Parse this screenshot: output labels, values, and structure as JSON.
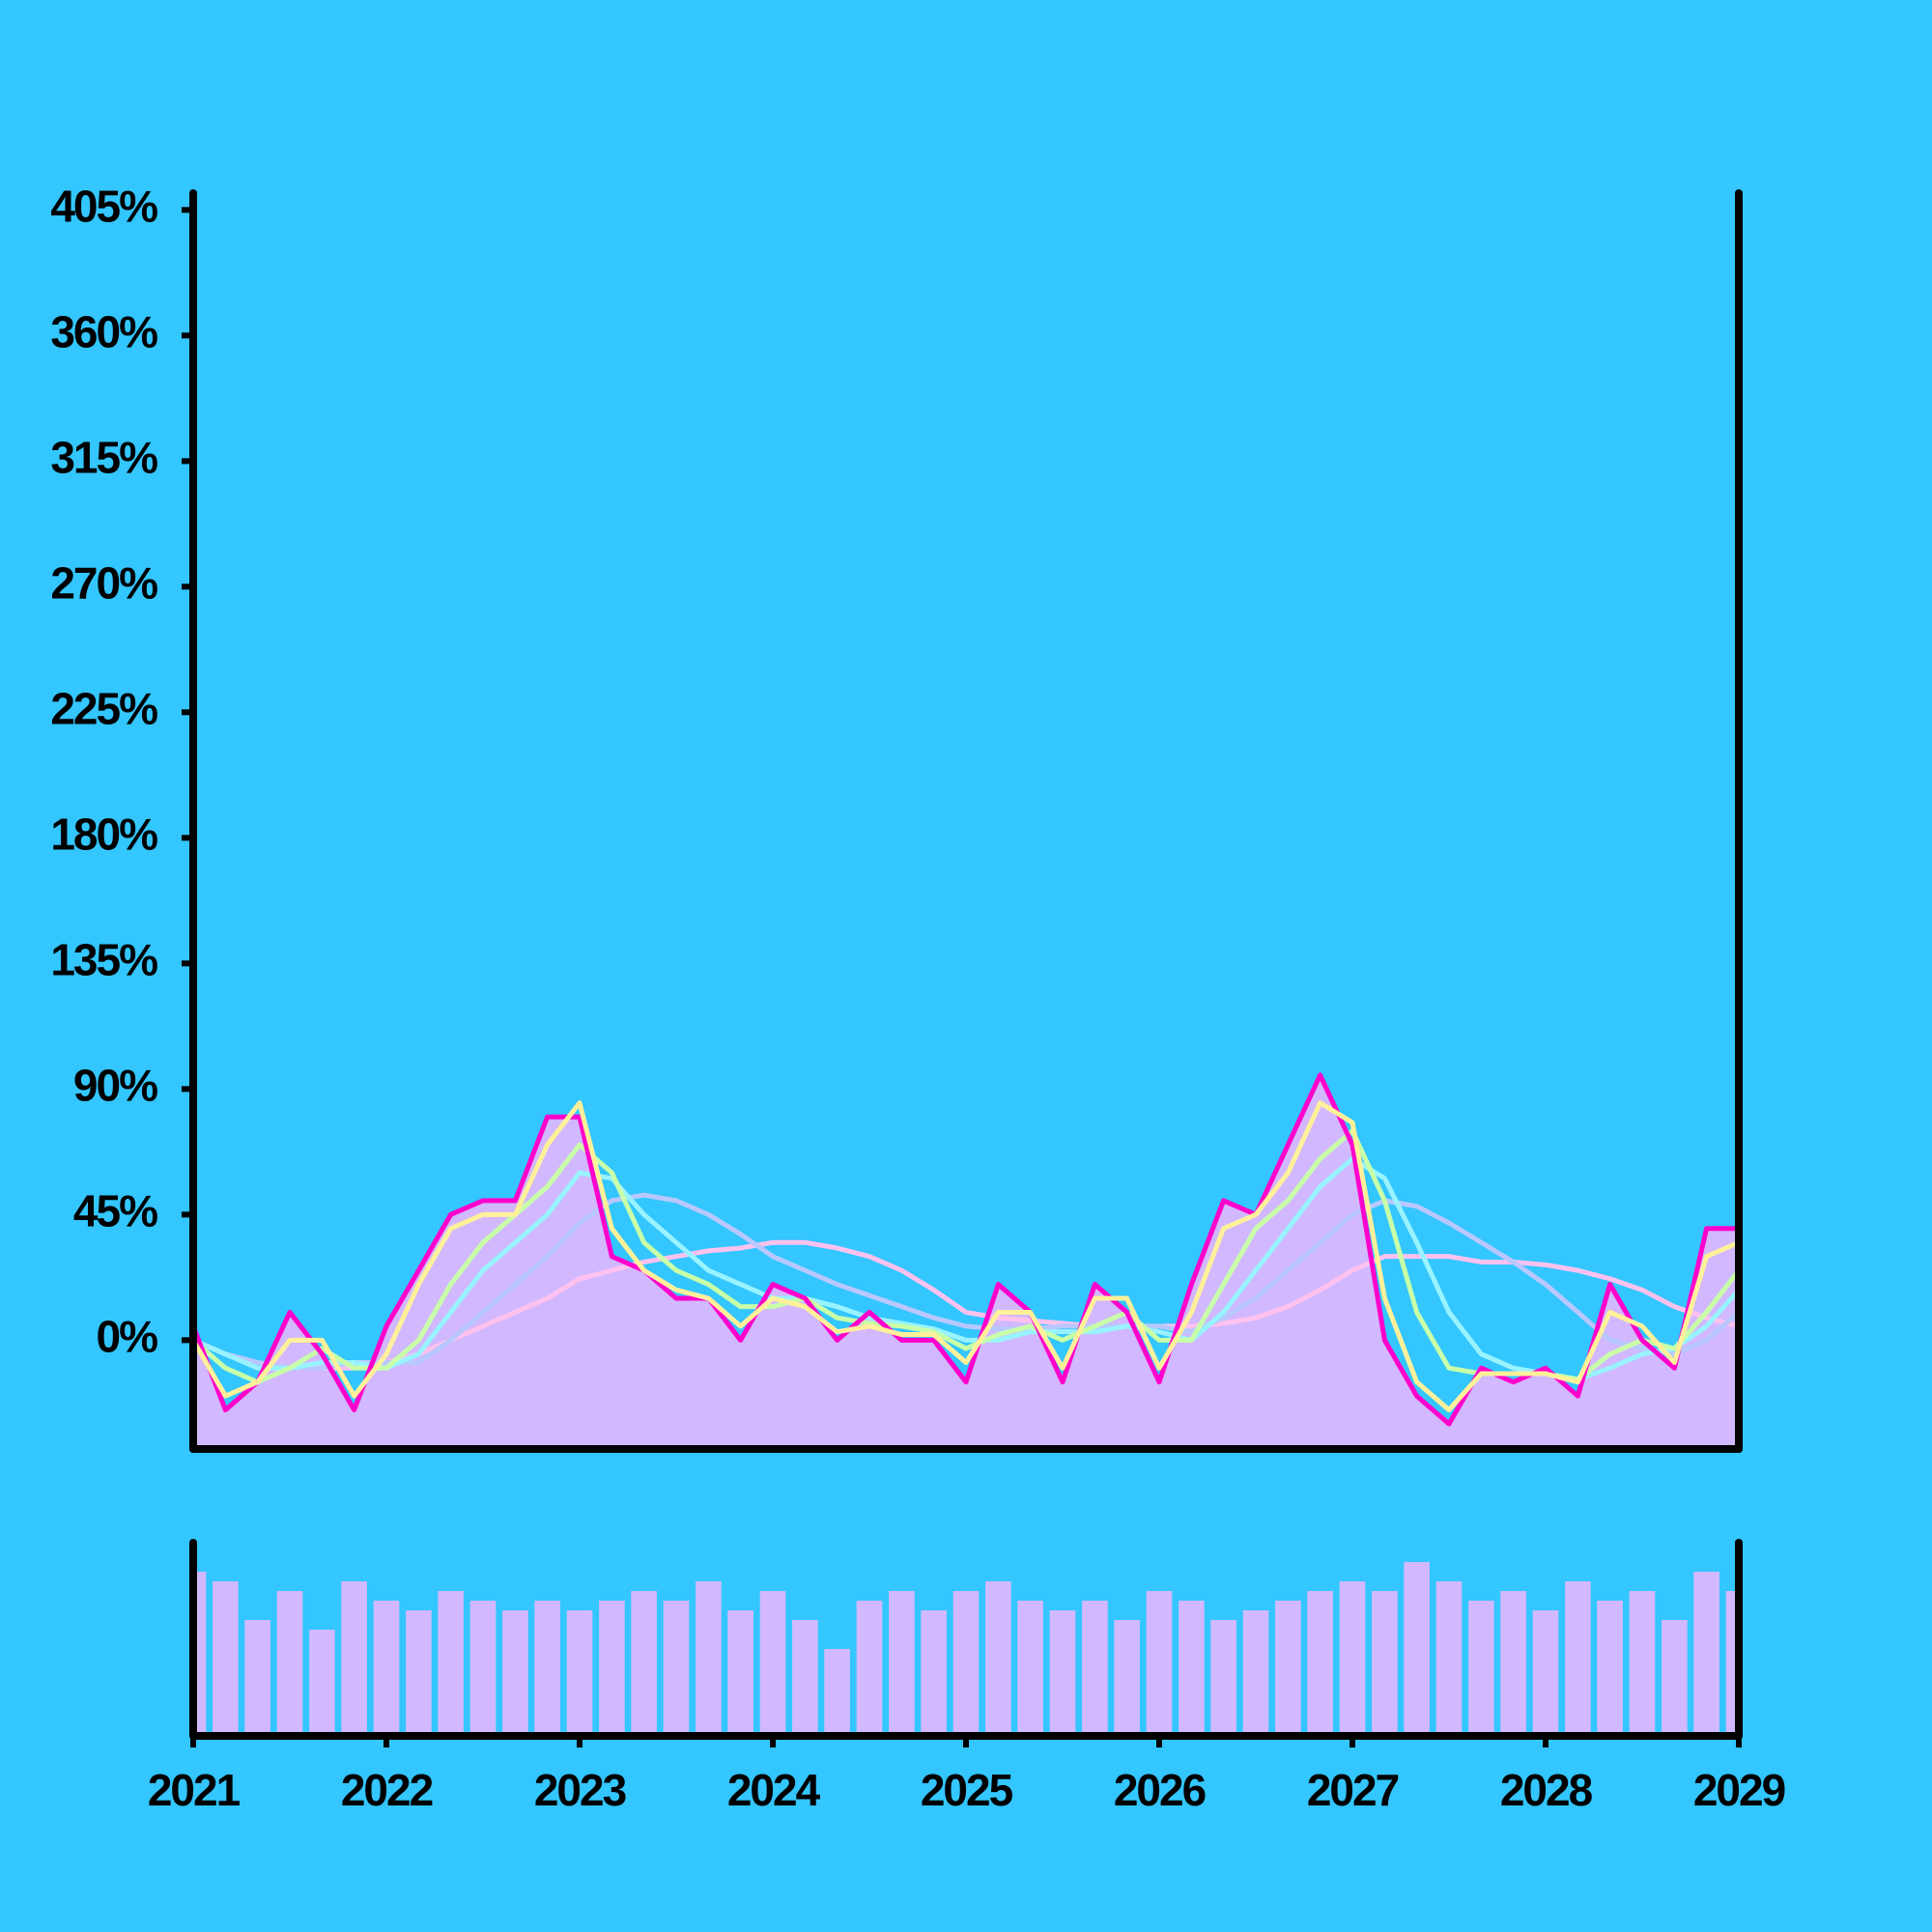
{
  "chart_data": [
    {
      "type": "line",
      "x": [
        2021,
        2021.167,
        2021.333,
        2021.5,
        2021.667,
        2021.833,
        2022,
        2022.167,
        2022.333,
        2022.5,
        2022.667,
        2022.833,
        2023,
        2023.167,
        2023.333,
        2023.5,
        2023.667,
        2023.833,
        2024,
        2024.167,
        2024.333,
        2024.5,
        2024.667,
        2024.833,
        2025,
        2025.167,
        2025.333,
        2025.5,
        2025.667,
        2025.833,
        2026,
        2026.167,
        2026.333,
        2026.5,
        2026.667,
        2026.833,
        2027,
        2027.167,
        2027.333,
        2027.5,
        2027.667,
        2027.833,
        2028,
        2028.167,
        2028.333,
        2028.5,
        2028.667,
        2028.833,
        2029
      ],
      "xlim": [
        2021,
        2029
      ],
      "ylim": [
        -39,
        411
      ],
      "yticks": [
        {
          "value": 0,
          "label": "0%"
        },
        {
          "value": 45,
          "label": "45%"
        },
        {
          "value": 90,
          "label": "90%"
        },
        {
          "value": 135,
          "label": "135%"
        },
        {
          "value": 180,
          "label": "180%"
        },
        {
          "value": 225,
          "label": "225%"
        },
        {
          "value": 270,
          "label": "270%"
        },
        {
          "value": 315,
          "label": "315%"
        },
        {
          "value": 360,
          "label": "360%"
        },
        {
          "value": 405,
          "label": "405%"
        }
      ],
      "fill": "#d1b8ff",
      "series": [
        {
          "color": "#ffc2ef",
          "values": [
            0,
            -5,
            -8,
            -10,
            -10,
            -10,
            -8,
            -5,
            0,
            5,
            10,
            15,
            22,
            25,
            28,
            30,
            32,
            33,
            35,
            35,
            33,
            30,
            25,
            18,
            10,
            8,
            7,
            6,
            5,
            5,
            5,
            5,
            6,
            8,
            12,
            18,
            25,
            30,
            30,
            30,
            28,
            28,
            27,
            25,
            22,
            18,
            12,
            8,
            5
          ]
        },
        {
          "color": "#b8c8ff",
          "values": [
            0,
            -5,
            -8,
            -10,
            -10,
            -8,
            -8,
            -8,
            0,
            10,
            20,
            30,
            42,
            50,
            52,
            50,
            45,
            38,
            30,
            25,
            20,
            16,
            12,
            8,
            5,
            4,
            4,
            5,
            5,
            5,
            5,
            3,
            8,
            15,
            25,
            35,
            45,
            50,
            48,
            42,
            35,
            28,
            20,
            10,
            0,
            -3,
            -5,
            0,
            10
          ]
        },
        {
          "color": "#99f3ff",
          "values": [
            0,
            -5,
            -10,
            -10,
            -8,
            -8,
            -10,
            -5,
            10,
            25,
            35,
            45,
            60,
            58,
            45,
            35,
            25,
            20,
            15,
            15,
            12,
            8,
            6,
            4,
            0,
            0,
            3,
            3,
            3,
            5,
            3,
            0,
            10,
            25,
            40,
            55,
            65,
            58,
            35,
            10,
            -5,
            -10,
            -12,
            -14,
            -10,
            -5,
            -3,
            5,
            18
          ]
        },
        {
          "color": "#c8ffa8",
          "values": [
            0,
            -10,
            -15,
            -10,
            -3,
            -10,
            -10,
            0,
            20,
            35,
            45,
            55,
            70,
            60,
            35,
            25,
            20,
            12,
            12,
            15,
            8,
            6,
            5,
            3,
            -3,
            2,
            5,
            0,
            5,
            10,
            0,
            0,
            20,
            40,
            50,
            65,
            75,
            50,
            10,
            -10,
            -12,
            -12,
            -12,
            -14,
            -5,
            0,
            -3,
            10,
            25
          ]
        },
        {
          "color": "#ff00cc",
          "values": [
            5,
            -25,
            -15,
            10,
            -5,
            -25,
            5,
            25,
            45,
            50,
            50,
            80,
            80,
            30,
            25,
            15,
            15,
            0,
            20,
            15,
            0,
            10,
            0,
            0,
            -15,
            20,
            10,
            -15,
            20,
            10,
            -15,
            20,
            50,
            45,
            70,
            95,
            70,
            0,
            -20,
            -30,
            -10,
            -15,
            -10,
            -20,
            20,
            0,
            -10,
            40,
            40
          ]
        },
        {
          "color": "#fff09a",
          "values": [
            0,
            -20,
            -15,
            0,
            0,
            -20,
            -5,
            20,
            40,
            45,
            45,
            70,
            85,
            40,
            25,
            18,
            15,
            5,
            15,
            12,
            3,
            5,
            2,
            2,
            -8,
            10,
            10,
            -10,
            15,
            15,
            -10,
            10,
            40,
            45,
            60,
            85,
            78,
            15,
            -15,
            -25,
            -12,
            -12,
            -12,
            -15,
            10,
            5,
            -8,
            30,
            35
          ]
        }
      ]
    },
    {
      "type": "bar",
      "x": [
        2021,
        2021.167,
        2021.333,
        2021.5,
        2021.667,
        2021.833,
        2022,
        2022.167,
        2022.333,
        2022.5,
        2022.667,
        2022.833,
        2023,
        2023.167,
        2023.333,
        2023.5,
        2023.667,
        2023.833,
        2024,
        2024.167,
        2024.333,
        2024.5,
        2024.667,
        2024.833,
        2025,
        2025.167,
        2025.333,
        2025.5,
        2025.667,
        2025.833,
        2026,
        2026.167,
        2026.333,
        2026.5,
        2026.667,
        2026.833,
        2027,
        2027.167,
        2027.333,
        2027.5,
        2027.667,
        2027.833,
        2028,
        2028.167,
        2028.333,
        2028.5,
        2028.667,
        2028.833,
        2029
      ],
      "xlim": [
        2021,
        2029
      ],
      "xticks": [
        2021,
        2022,
        2023,
        2024,
        2025,
        2026,
        2027,
        2028,
        2029
      ],
      "ylim": [
        0,
        100
      ],
      "color": "#d1b8ff",
      "values": [
        85,
        80,
        60,
        75,
        55,
        80,
        70,
        65,
        75,
        70,
        65,
        70,
        65,
        70,
        75,
        70,
        80,
        65,
        75,
        60,
        45,
        70,
        75,
        65,
        75,
        80,
        70,
        65,
        70,
        60,
        75,
        70,
        60,
        65,
        70,
        75,
        80,
        75,
        90,
        80,
        70,
        75,
        65,
        80,
        70,
        75,
        60,
        85,
        75
      ]
    }
  ]
}
